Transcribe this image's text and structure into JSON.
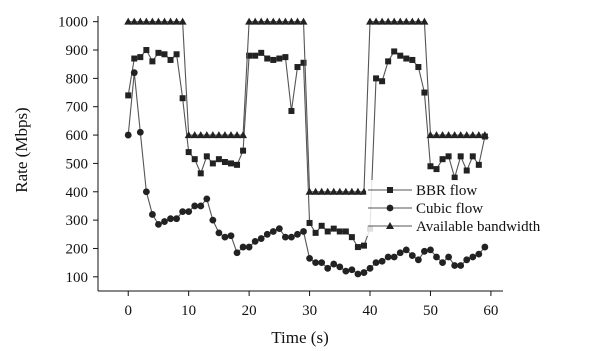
{
  "chart_data": {
    "type": "line",
    "xlabel": "Time (s)",
    "ylabel": "Rate (Mbps)",
    "xlim": [
      -5,
      62
    ],
    "ylim": [
      50,
      1020
    ],
    "xticks": [
      0,
      10,
      20,
      30,
      40,
      50,
      60
    ],
    "yticks": [
      100,
      200,
      300,
      400,
      500,
      600,
      700,
      800,
      900,
      1000
    ],
    "grid": false,
    "legend_position": "lower-right",
    "x": [
      0,
      1,
      2,
      3,
      4,
      5,
      6,
      7,
      8,
      9,
      10,
      11,
      12,
      13,
      14,
      15,
      16,
      17,
      18,
      19,
      20,
      21,
      22,
      23,
      24,
      25,
      26,
      27,
      28,
      29,
      30,
      31,
      32,
      33,
      34,
      35,
      36,
      37,
      38,
      39,
      40,
      41,
      42,
      43,
      44,
      45,
      46,
      47,
      48,
      49,
      50,
      51,
      52,
      53,
      54,
      55,
      56,
      57,
      58,
      59
    ],
    "series": [
      {
        "name": "BBR flow",
        "marker": "square",
        "values": [
          740,
          870,
          875,
          900,
          860,
          890,
          885,
          865,
          885,
          730,
          540,
          515,
          465,
          525,
          500,
          515,
          505,
          500,
          495,
          545,
          880,
          880,
          890,
          870,
          865,
          870,
          875,
          685,
          840,
          855,
          290,
          255,
          280,
          260,
          270,
          260,
          260,
          240,
          205,
          210,
          270,
          800,
          790,
          860,
          895,
          880,
          870,
          865,
          840,
          750,
          490,
          480,
          515,
          525,
          450,
          525,
          475,
          525,
          495,
          595
        ]
      },
      {
        "name": "Cubic flow",
        "marker": "circle",
        "values": [
          600,
          820,
          610,
          400,
          320,
          285,
          295,
          305,
          305,
          330,
          330,
          350,
          350,
          375,
          300,
          255,
          240,
          245,
          185,
          205,
          205,
          225,
          235,
          250,
          260,
          270,
          240,
          240,
          250,
          260,
          165,
          150,
          150,
          130,
          145,
          135,
          120,
          125,
          110,
          115,
          130,
          150,
          155,
          170,
          170,
          185,
          195,
          175,
          160,
          190,
          195,
          170,
          150,
          170,
          140,
          140,
          160,
          170,
          180,
          205
        ]
      },
      {
        "name": "Available bandwidth",
        "marker": "triangle",
        "values": [
          1000,
          1000,
          1000,
          1000,
          1000,
          1000,
          1000,
          1000,
          1000,
          1000,
          600,
          600,
          600,
          600,
          600,
          600,
          600,
          600,
          600,
          600,
          1000,
          1000,
          1000,
          1000,
          1000,
          1000,
          1000,
          1000,
          1000,
          1000,
          400,
          400,
          400,
          400,
          400,
          400,
          400,
          400,
          400,
          400,
          1000,
          1000,
          1000,
          1000,
          1000,
          1000,
          1000,
          1000,
          1000,
          1000,
          600,
          600,
          600,
          600,
          600,
          600,
          600,
          600,
          600,
          600
        ]
      }
    ],
    "colors": {
      "line": "#555555",
      "marker": "#222222",
      "axis": "#111111"
    }
  }
}
